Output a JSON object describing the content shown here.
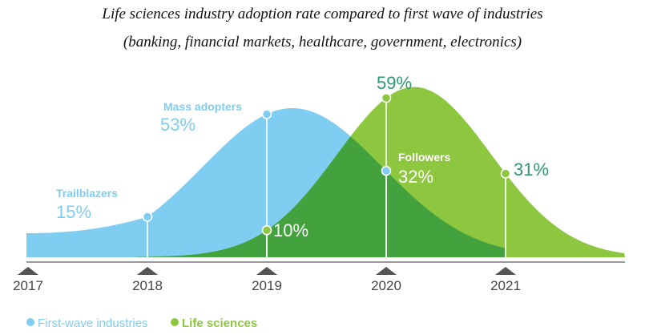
{
  "chart_data": {
    "type": "area",
    "title": "Life sciences industry adoption rate compared to first wave of industries",
    "subtitle": "(banking, financial markets, healthcare, government, electronics)",
    "x_ticks": [
      "2017",
      "2018",
      "2019",
      "2020",
      "2021"
    ],
    "series": [
      {
        "name": "First-wave industries",
        "color": "#7fcdf0",
        "overlap_color": "#44a23e",
        "points": [
          {
            "x": 2018,
            "value": 15,
            "value_label": "15%",
            "stage": "Trailblazers"
          },
          {
            "x": 2019,
            "value": 53,
            "value_label": "53%",
            "stage": "Mass adopters"
          },
          {
            "x": 2020,
            "value": 32,
            "value_label": "32%",
            "stage": "Followers"
          }
        ]
      },
      {
        "name": "Life sciences",
        "color": "#8dc63f",
        "points": [
          {
            "x": 2019,
            "value": 10,
            "value_label": "10%"
          },
          {
            "x": 2020,
            "value": 59,
            "value_label": "59%"
          },
          {
            "x": 2021,
            "value": 31,
            "value_label": "31%"
          }
        ]
      }
    ],
    "legend": {
      "placement": "bottom-left"
    },
    "grid": false,
    "colors": {
      "first_wave_label": "#7fcdf0",
      "life_sciences_label": "#2e9a6e",
      "axis": "#9a9a9a",
      "tick_marker": "#555555",
      "tick_label": "#444444"
    }
  }
}
